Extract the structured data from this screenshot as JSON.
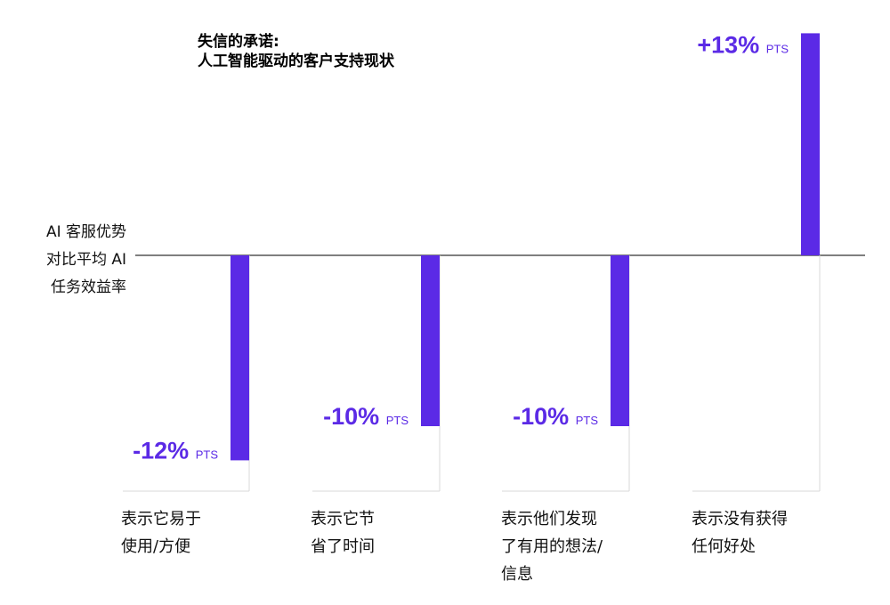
{
  "chart_data": {
    "type": "bar",
    "title_lines": [
      "失信的承诺:",
      "人工智能驱动的客户支持现状"
    ],
    "ylabel_lines": [
      "AI 客服优势",
      "对比平均 AI",
      "任务效益率"
    ],
    "categories": [
      [
        "表示它易于",
        "使用/方便"
      ],
      [
        "表示它节",
        "省了时间"
      ],
      [
        "表示他们发现",
        "了有用的想法/",
        "信息"
      ],
      [
        "表示没有获得",
        "任何好处"
      ]
    ],
    "values": [
      -12,
      -10,
      -10,
      13
    ],
    "value_labels": [
      "-12%",
      "-10%",
      "-10%",
      "+13%"
    ],
    "unit_label": "PTS",
    "colors": {
      "bar": "#5b2ae6",
      "label": "#5b2ae6",
      "axis": "#333333",
      "guide": "#d9d9d9"
    }
  }
}
